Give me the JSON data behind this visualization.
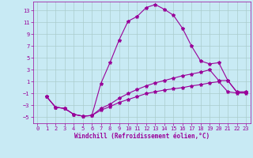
{
  "background_color": "#c8eaf4",
  "grid_color": "#aacccc",
  "line_color": "#990099",
  "xlabel": "Windchill (Refroidissement éolien,°C)",
  "tick_color": "#990099",
  "ylim": [
    -6,
    14.5
  ],
  "xlim": [
    -0.5,
    23.5
  ],
  "yticks": [
    -5,
    -3,
    -1,
    1,
    3,
    5,
    7,
    9,
    11,
    13
  ],
  "xticks": [
    0,
    1,
    2,
    3,
    4,
    5,
    6,
    7,
    8,
    9,
    10,
    11,
    12,
    13,
    14,
    15,
    16,
    17,
    18,
    19,
    20,
    21,
    22,
    23
  ],
  "series1_x": [
    1,
    2,
    3,
    4,
    5,
    6,
    7,
    8,
    9,
    10,
    11,
    12,
    13,
    14,
    15,
    16,
    17,
    18,
    19,
    20,
    21,
    22,
    23
  ],
  "series1_y": [
    -1.5,
    -3.3,
    -3.5,
    -4.5,
    -4.8,
    -4.7,
    0.7,
    4.2,
    8.0,
    11.2,
    12.0,
    13.5,
    14.0,
    13.2,
    12.2,
    10.0,
    7.0,
    4.5,
    4.0,
    4.2,
    1.2,
    -0.8,
    -0.8
  ],
  "series2_x": [
    1,
    2,
    3,
    4,
    5,
    6,
    7,
    8,
    9,
    10,
    11,
    12,
    13,
    14,
    15,
    16,
    17,
    18,
    19,
    20,
    21,
    22,
    23
  ],
  "series2_y": [
    -1.5,
    -3.3,
    -3.5,
    -4.5,
    -4.8,
    -4.7,
    -3.5,
    -2.8,
    -1.8,
    -1.0,
    -0.3,
    0.3,
    0.8,
    1.2,
    1.6,
    2.0,
    2.3,
    2.6,
    3.0,
    1.2,
    1.2,
    -0.7,
    -0.7
  ],
  "series3_x": [
    1,
    2,
    3,
    4,
    5,
    6,
    7,
    8,
    9,
    10,
    11,
    12,
    13,
    14,
    15,
    16,
    17,
    18,
    19,
    20,
    21,
    22,
    23
  ],
  "series3_y": [
    -1.5,
    -3.3,
    -3.5,
    -4.5,
    -4.8,
    -4.7,
    -3.8,
    -3.2,
    -2.5,
    -2.0,
    -1.5,
    -1.0,
    -0.7,
    -0.4,
    -0.2,
    0.0,
    0.3,
    0.5,
    0.8,
    1.0,
    -0.7,
    -0.9,
    -0.9
  ],
  "marker": "*",
  "markersize": 3,
  "linewidth": 0.8,
  "tick_fontsize": 5,
  "xlabel_fontsize": 5.5
}
